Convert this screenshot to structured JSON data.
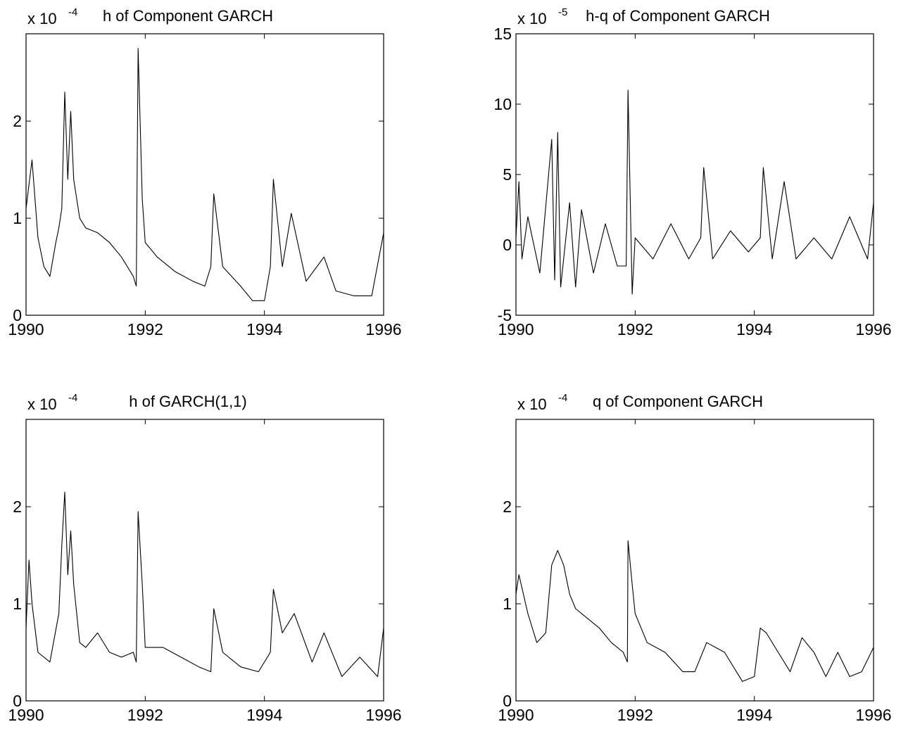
{
  "chart_data": [
    {
      "type": "line",
      "title": "h of Component GARCH",
      "multiplier": {
        "base": "x 10",
        "exponent": "-4"
      },
      "xlim": [
        1990,
        1996
      ],
      "ylim": [
        0,
        2.9
      ],
      "x_ticks": [
        1990,
        1992,
        1994,
        1996
      ],
      "x_tick_labels": [
        "1990",
        "1992",
        "1994",
        "1996"
      ],
      "y_ticks": [
        0,
        1,
        2
      ],
      "y_tick_labels": [
        "0",
        "1",
        "2"
      ],
      "grid": false,
      "series": [
        {
          "x": [
            1990.0,
            1990.1,
            1990.2,
            1990.3,
            1990.4,
            1990.5,
            1990.55,
            1990.6,
            1990.65,
            1990.7,
            1990.75,
            1990.8,
            1990.9,
            1991.0,
            1991.2,
            1991.4,
            1991.6,
            1991.8,
            1991.85,
            1991.88,
            1991.95,
            1992.0,
            1992.2,
            1992.5,
            1992.8,
            1993.0,
            1993.1,
            1993.15,
            1993.3,
            1993.6,
            1993.8,
            1994.0,
            1994.1,
            1994.15,
            1994.3,
            1994.45,
            1994.7,
            1995.0,
            1995.2,
            1995.5,
            1995.8,
            1996.0
          ],
          "y": [
            1.1,
            1.6,
            0.8,
            0.5,
            0.4,
            0.75,
            0.9,
            1.1,
            2.3,
            1.4,
            2.1,
            1.4,
            1.0,
            0.9,
            0.85,
            0.75,
            0.6,
            0.4,
            0.3,
            2.75,
            1.2,
            0.75,
            0.6,
            0.45,
            0.35,
            0.3,
            0.5,
            1.25,
            0.5,
            0.3,
            0.15,
            0.15,
            0.5,
            1.4,
            0.5,
            1.05,
            0.35,
            0.6,
            0.25,
            0.2,
            0.2,
            0.85
          ]
        }
      ]
    },
    {
      "type": "line",
      "title": "h-q of Component GARCH",
      "multiplier": {
        "base": "x 10",
        "exponent": "-5"
      },
      "xlim": [
        1990,
        1996
      ],
      "ylim": [
        -5,
        15
      ],
      "x_ticks": [
        1990,
        1992,
        1994,
        1996
      ],
      "x_tick_labels": [
        "1990",
        "1992",
        "1994",
        "1996"
      ],
      "y_ticks": [
        -5,
        0,
        5,
        10,
        15
      ],
      "y_tick_labels": [
        "-5",
        "0",
        "5",
        "10",
        "15"
      ],
      "grid": false,
      "series": [
        {
          "x": [
            1990.0,
            1990.05,
            1990.1,
            1990.2,
            1990.4,
            1990.6,
            1990.65,
            1990.7,
            1990.75,
            1990.9,
            1991.0,
            1991.1,
            1991.3,
            1991.5,
            1991.7,
            1991.85,
            1991.88,
            1991.95,
            1992.0,
            1992.3,
            1992.6,
            1992.9,
            1993.1,
            1993.15,
            1993.3,
            1993.6,
            1993.9,
            1994.1,
            1994.15,
            1994.3,
            1994.5,
            1994.7,
            1995.0,
            1995.3,
            1995.6,
            1995.9,
            1996.0
          ],
          "y": [
            0.5,
            4.5,
            -1.0,
            2.0,
            -2.0,
            7.5,
            -2.5,
            8.0,
            -3.0,
            3.0,
            -3.0,
            2.5,
            -2.0,
            1.5,
            -1.5,
            -1.5,
            11.0,
            -3.5,
            0.5,
            -1.0,
            1.5,
            -1.0,
            0.5,
            5.5,
            -1.0,
            1.0,
            -0.5,
            0.5,
            5.5,
            -1.0,
            4.5,
            -1.0,
            0.5,
            -1.0,
            2.0,
            -1.0,
            3.0
          ]
        }
      ]
    },
    {
      "type": "line",
      "title": "h of GARCH(1,1)",
      "multiplier": {
        "base": "x 10",
        "exponent": "-4"
      },
      "xlim": [
        1990,
        1996
      ],
      "ylim": [
        0,
        2.9
      ],
      "x_ticks": [
        1990,
        1992,
        1994,
        1996
      ],
      "x_tick_labels": [
        "1990",
        "1992",
        "1994",
        "1996"
      ],
      "y_ticks": [
        0,
        1,
        2
      ],
      "y_tick_labels": [
        "0",
        "1",
        "2"
      ],
      "grid": false,
      "series": [
        {
          "x": [
            1990.0,
            1990.05,
            1990.1,
            1990.2,
            1990.4,
            1990.55,
            1990.6,
            1990.65,
            1990.7,
            1990.75,
            1990.8,
            1990.9,
            1991.0,
            1991.2,
            1991.4,
            1991.6,
            1991.8,
            1991.85,
            1991.88,
            1991.95,
            1992.0,
            1992.3,
            1992.6,
            1992.9,
            1993.1,
            1993.15,
            1993.3,
            1993.6,
            1993.9,
            1994.1,
            1994.15,
            1994.3,
            1994.5,
            1994.8,
            1995.0,
            1995.3,
            1995.6,
            1995.9,
            1996.0
          ],
          "y": [
            0.75,
            1.45,
            1.0,
            0.5,
            0.4,
            0.9,
            1.6,
            2.15,
            1.3,
            1.75,
            1.2,
            0.6,
            0.55,
            0.7,
            0.5,
            0.45,
            0.5,
            0.4,
            1.95,
            1.2,
            0.55,
            0.55,
            0.45,
            0.35,
            0.3,
            0.95,
            0.5,
            0.35,
            0.3,
            0.5,
            1.15,
            0.7,
            0.9,
            0.4,
            0.7,
            0.25,
            0.45,
            0.25,
            0.75
          ]
        }
      ]
    },
    {
      "type": "line",
      "title": "q of Component GARCH",
      "multiplier": {
        "base": "x 10",
        "exponent": "-4"
      },
      "xlim": [
        1990,
        1996
      ],
      "ylim": [
        0,
        2.9
      ],
      "x_ticks": [
        1990,
        1992,
        1994,
        1996
      ],
      "x_tick_labels": [
        "1990",
        "1992",
        "1994",
        "1996"
      ],
      "y_ticks": [
        0,
        1,
        2
      ],
      "y_tick_labels": [
        "0",
        "1",
        "2"
      ],
      "grid": false,
      "series": [
        {
          "x": [
            1990.0,
            1990.05,
            1990.2,
            1990.35,
            1990.5,
            1990.6,
            1990.7,
            1990.8,
            1990.9,
            1991.0,
            1991.2,
            1991.4,
            1991.6,
            1991.8,
            1991.87,
            1991.88,
            1991.95,
            1992.0,
            1992.2,
            1992.5,
            1992.8,
            1993.0,
            1993.2,
            1993.5,
            1993.8,
            1994.0,
            1994.1,
            1994.2,
            1994.4,
            1994.6,
            1994.8,
            1995.0,
            1995.2,
            1995.4,
            1995.6,
            1995.8,
            1996.0
          ],
          "y": [
            1.1,
            1.3,
            0.9,
            0.6,
            0.7,
            1.4,
            1.55,
            1.4,
            1.1,
            0.95,
            0.85,
            0.75,
            0.6,
            0.5,
            0.4,
            1.65,
            1.2,
            0.9,
            0.6,
            0.5,
            0.3,
            0.3,
            0.6,
            0.5,
            0.2,
            0.25,
            0.75,
            0.7,
            0.5,
            0.3,
            0.65,
            0.5,
            0.25,
            0.5,
            0.25,
            0.3,
            0.55
          ]
        }
      ]
    }
  ]
}
